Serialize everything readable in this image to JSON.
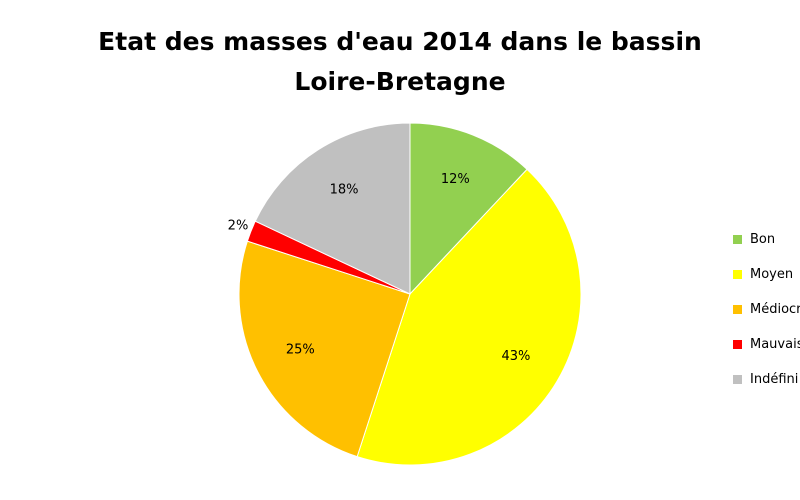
{
  "chart_data": {
    "type": "pie",
    "title_lines": [
      "Etat des masses d'eau 2014 dans le bassin",
      "Loire-Bretagne"
    ],
    "categories": [
      "Bon",
      "Moyen",
      "Médiocre",
      "Mauvais",
      "Indéfini"
    ],
    "values": [
      12,
      43,
      25,
      2,
      18
    ],
    "data_labels": [
      "12%",
      "43%",
      "25%",
      "2%",
      "18%"
    ],
    "colors": [
      "#92d050",
      "#ffff00",
      "#ffc000",
      "#ff0000",
      "#c0c0c0"
    ],
    "legend_labels": [
      "Bon",
      "Moyen",
      "Médiocre",
      "Mauvais",
      "Indéfini"
    ],
    "legend_position": "right",
    "start_angle_deg": 0,
    "direction": "clockwise"
  }
}
